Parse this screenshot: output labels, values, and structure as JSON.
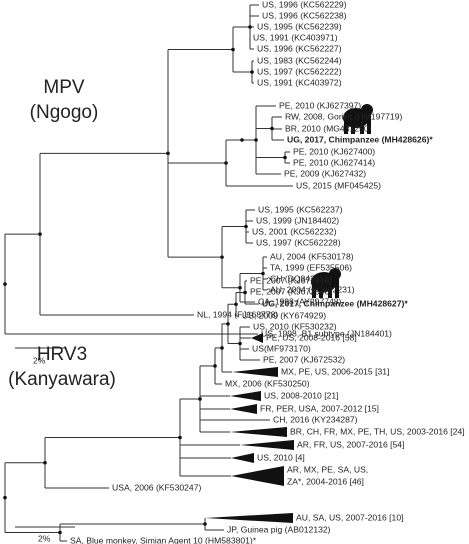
{
  "panels": [
    {
      "title": "MPV",
      "subtitle": "(Ngogo)",
      "scale_label": "2%",
      "leaves": [
        "US, 1996 (KC562229)",
        "US, 1996 (KC562238)",
        "US, 1995 (KC562239)",
        "US, 1991 (KC403971)",
        "US, 1996 (KC562227)",
        "US, 1983 (KC562244)",
        "US, 1997 (KC562222)",
        "US, 1991 (KC403972)",
        "PE, 2010 (KJ627397)",
        "RW, 2008, Gorilla (HM197719)",
        "BR, 2010 (MG431250)",
        "UG, 2017, Chimpanzee (MH428626)*",
        "PE, 2010 (KJ627400)",
        "PE, 2010 (KJ627414)",
        "PE, 2009 (KJ627432)",
        "US, 2015 (MF045425)",
        "US, 1995 (KC562237)",
        "US, 1999 (JN184402)",
        "US, 2001 (KC562232)",
        "US, 1997 (KC562228)",
        "AU, 2004 (KF530178)",
        "TA, 1999 (EF535506)",
        "CH (DQ843658)",
        "AU, 2004 (KC562231)",
        "CA, 1998 (AY297748)",
        "NL, 1994 (FJ168778)",
        "US, 1998, B1 subtype (JN184401)"
      ]
    },
    {
      "title": "HRV3",
      "subtitle": "(Kanyawara)",
      "scale_label": "2%",
      "leaves": [
        "PE, 2007 (KJ672616)",
        "PE, 2007 (KJ672546)",
        "UG, 2017, Chimpanzee (MH428627)*",
        "US, 2009 (KY674929)",
        "US, 2010 (KF530232)",
        "PE, US, 2008-2016 [58]",
        "US(MF973170)",
        "PE, 2007 (KJ672532)",
        "MX, PE, US, 2006-2015 [31]",
        "MX, 2006 (KF530250)",
        "US, 2008-2010 [21]",
        "FR, PER, USA, 2007-2012 [15]",
        "CH, 2016 (KY234287)",
        "BR, CH, FR, MX, PE, TH, US, 2003-2016 [24]",
        "AR, FR, US, 2007-2016 [54]",
        "US, 2010 [4]",
        [
          "AR, MX, PE, SA, US,",
          "ZA*, 2004-2016 [46]"
        ],
        "USA, 2006 (KF530247)",
        "AU, SA, US, 2007-2016 [10]",
        "JP, Guinea pig (AB012132)",
        "SA, Blue monkey, Simian Agent 10 (HM583801)*"
      ]
    }
  ]
}
